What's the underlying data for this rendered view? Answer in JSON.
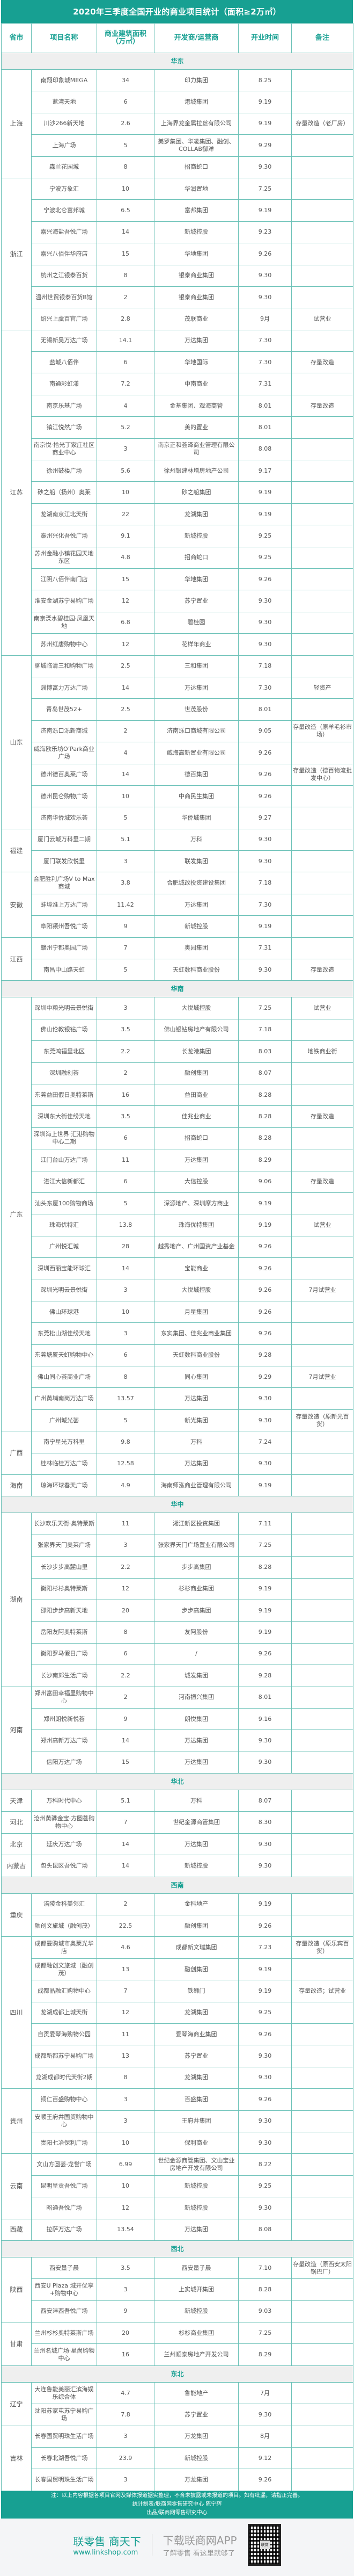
{
  "title": "2020年三季度全国开业的商业项目统计（面积≥2万㎡）",
  "headers": [
    "省市",
    "项目名称",
    "商业建筑面积（万㎡）",
    "开发商/运营商",
    "开业时间",
    "备注"
  ],
  "colors": {
    "accent": "#17a092",
    "region_bg": "#efefef",
    "border": "#6cc2b8"
  },
  "regions": [
    {
      "name": "华东",
      "provinces": [
        {
          "name": "上海",
          "rows": [
            [
              "南翔印象城MEGA",
              "34",
              "印力集团",
              "8.25",
              ""
            ],
            [
              "蓝湾天地",
              "6",
              "港城集团",
              "9.19",
              ""
            ],
            [
              "川沙266新天地",
              "2.6",
              "上海界龙金属拉丝有限公司",
              "9.19",
              "存量改造（老厂房）"
            ],
            [
              "上海广场",
              "5",
              "美罗集团、华凌集团、融创、COLLAB御洋",
              "9.29",
              ""
            ],
            [
              "森兰花园城",
              "8",
              "招商蛇口",
              "9.30",
              ""
            ]
          ]
        },
        {
          "name": "浙江",
          "rows": [
            [
              "宁波万象汇",
              "10",
              "华润置地",
              "7.25",
              ""
            ],
            [
              "宁波北仑富邦城",
              "6.5",
              "富邦集团",
              "9.19",
              ""
            ],
            [
              "嘉兴海盐吾悦广场",
              "14",
              "新城控股",
              "9.23",
              ""
            ],
            [
              "嘉兴八佰伴华府店",
              "15",
              "华地集团",
              "9.26",
              ""
            ],
            [
              "杭州之江银泰百货",
              "8",
              "银泰商业集团",
              "9.30",
              ""
            ],
            [
              "温州世贸银泰百货B馆",
              "2",
              "银泰商业集团",
              "9.30",
              ""
            ],
            [
              "绍兴上虞百官广场",
              "2.8",
              "茂联商业",
              "9月",
              "试营业"
            ]
          ]
        },
        {
          "name": "江苏",
          "rows": [
            [
              "无锡新吴万达广场",
              "14.1",
              "万达集团",
              "7.30",
              ""
            ],
            [
              "盐城八佰伴",
              "6",
              "华地国际",
              "7.30",
              "存量改造"
            ],
            [
              "南通彩虹漾",
              "7.2",
              "中南商业",
              "7.31",
              ""
            ],
            [
              "南京乐基广场",
              "4",
              "金基集团、观海商管",
              "8.01",
              "存量改造"
            ],
            [
              "镇江悦然广场",
              "5.2",
              "美的置业",
              "8.01",
              ""
            ],
            [
              "南京悦·拾光丁家庄社区商业中心",
              "3",
              "南京正和荟泽商业管理有限公司",
              "8.08",
              ""
            ],
            [
              "徐州鼓楼广场",
              "5.6",
              "徐州银建林增房地产公司",
              "9.17",
              ""
            ],
            [
              "砂之船（扬州）奥莱",
              "10",
              "砂之船集团",
              "9.19",
              ""
            ],
            [
              "龙湖南京江北天街",
              "22",
              "龙湖集团",
              "9.19",
              ""
            ],
            [
              "泰州兴化吾悦广场",
              "9.1",
              "新城控股",
              "9.25",
              ""
            ],
            [
              "苏州金融小镇花园天地东区",
              "4.8",
              "招商蛇口",
              "9.25",
              ""
            ],
            [
              "江阴八佰伴南门店",
              "15",
              "华地集团",
              "9.26",
              ""
            ],
            [
              "淮安金湖苏宁易购广场",
              "12",
              "苏宁置业",
              "9.30",
              ""
            ],
            [
              "南京溧水碧桂园·凤凰天地",
              "6.8",
              "碧桂园",
              "9.30",
              ""
            ],
            [
              "苏州红唐购物中心",
              "12",
              "花样年商业",
              "9.30",
              ""
            ]
          ]
        },
        {
          "name": "山东",
          "rows": [
            [
              "聊城临清三和购物广场",
              "2.5",
              "三和集团",
              "7.18",
              ""
            ],
            [
              "淄博富力万达广场",
              "14",
              "万达集团",
              "7.30",
              "轻资产"
            ],
            [
              "青岛世茂52+",
              "2.5",
              "世茂股份",
              "8.01",
              ""
            ],
            [
              "济南泺口泺新商城",
              "2",
              "济南泺口商城有限公司",
              "9.05",
              "存量改造（原羊毛衫市场）"
            ],
            [
              "威海欧乐坊O’Park商业广场",
              "4",
              "威海高新置业有限公司",
              "9.26",
              ""
            ],
            [
              "德州德百奥莱广场",
              "14",
              "德百集团",
              "9.26",
              "存量改造（德百物流批发中心）"
            ],
            [
              "德州昆仑购物广场",
              "10",
              "中商民生集团",
              "9.26",
              ""
            ],
            [
              "济南华侨城欢乐荟",
              "5",
              "华侨城集团",
              "9.27",
              ""
            ]
          ]
        },
        {
          "name": "福建",
          "rows": [
            [
              "厦门云城万科里二期",
              "5.1",
              "万科",
              "9.30",
              ""
            ],
            [
              "厦门联发欣悦里",
              "3",
              "联发集团",
              "9.30",
              ""
            ]
          ]
        },
        {
          "name": "安徽",
          "rows": [
            [
              "合肥胜利广场V to Max商城",
              "3.8",
              "合肥城改投资建设集团",
              "7.18",
              ""
            ],
            [
              "蚌埠淮上万达广场",
              "11.42",
              "万达集团",
              "7.30",
              ""
            ],
            [
              "阜阳颍州吾悦广场",
              "9",
              "新城控股",
              "9.19",
              ""
            ]
          ]
        },
        {
          "name": "江西",
          "rows": [
            [
              "赣州宁都奥园广场",
              "7",
              "奥园集团",
              "7.31",
              ""
            ],
            [
              "南昌中山路天虹",
              "5",
              "天虹数科商业股份",
              "9.30",
              "存量改造"
            ]
          ]
        }
      ]
    },
    {
      "name": "华南",
      "provinces": [
        {
          "name": "广东",
          "rows": [
            [
              "深圳中粮光明云景悦街",
              "3",
              "大悦城控股",
              "7.25",
              "试营业"
            ],
            [
              "佛山伦教银钻广场",
              "3.5",
              "佛山银钻房地产有限公司",
              "7.18",
              ""
            ],
            [
              "东莞鸿福里北区",
              "2.2",
              "长龙港集团",
              "8.03",
              "地铁商业街"
            ],
            [
              "深圳融创荟",
              "2",
              "融创集团",
              "8.07",
              ""
            ],
            [
              "东莞益田假日奥特莱斯",
              "16",
              "益田商业",
              "8.28",
              ""
            ],
            [
              "深圳东大街佳纷天地",
              "3.5",
              "佳兆业商业",
              "8.28",
              "存量改造"
            ],
            [
              "深圳海上世界·汇港购物中心二期",
              "6",
              "招商蛇口",
              "8.28",
              ""
            ],
            [
              "江门台山万达广场",
              "11",
              "万达集团",
              "8.29",
              ""
            ],
            [
              "湛江大信新都汇",
              "6",
              "大信控股",
              "9.06",
              "存量改造"
            ],
            [
              "汕头东厦100购物商场",
              "5",
              "深源地产、深圳摩方商业",
              "9.19",
              ""
            ],
            [
              "珠海优特汇",
              "13.8",
              "珠海优特集团",
              "9.19",
              "试营业"
            ],
            [
              "广州悦汇城",
              "28",
              "越秀地产、广州国资产业基金",
              "9.26",
              ""
            ],
            [
              "深圳西丽宝能环球汇",
              "14",
              "宝能商业",
              "9.26",
              ""
            ],
            [
              "深圳光明云景悦街",
              "3",
              "大悦城控股",
              "9.26",
              "7月试营业"
            ],
            [
              "佛山环球港",
              "10",
              "月星集团",
              "9.26",
              ""
            ],
            [
              "东莞松山湖佳纷天地",
              "3",
              "东实集团、佳兆业商业集团",
              "9.26",
              ""
            ],
            [
              "东莞塘厦天虹购物中心",
              "6",
              "天虹数科商业股份",
              "9.28",
              ""
            ],
            [
              "佛山同心荟商业广场",
              "8",
              "同心集团",
              "9.29",
              "7月试营业"
            ],
            [
              "广州黄埔南岗万达广场",
              "13.57",
              "万达集团",
              "9.30",
              ""
            ],
            [
              "广州城光荟",
              "5",
              "新光集团",
              "9.30",
              "存量改造（原新光百货）"
            ]
          ]
        },
        {
          "name": "广西",
          "rows": [
            [
              "南宁星光万科里",
              "9.8",
              "万科",
              "7.24",
              ""
            ],
            [
              "桂林临桂万达广场",
              "12.58",
              "万达集团",
              "9.30",
              ""
            ]
          ]
        },
        {
          "name": "海南",
          "rows": [
            [
              "琼海环球春天广场",
              "4.9",
              "海南师泓商业管理有限公司",
              "9.19",
              ""
            ]
          ]
        }
      ]
    },
    {
      "name": "华中",
      "provinces": [
        {
          "name": "湖南",
          "rows": [
            [
              "长沙欢乐天街·奥特莱斯",
              "11",
              "湘江新区投资集团",
              "7.11",
              ""
            ],
            [
              "张家界天门奥莱广场",
              "3",
              "张家界天门广场置业有限公司",
              "7.25",
              ""
            ],
            [
              "长沙步步高麓山里",
              "2.2",
              "步步高集团",
              "8.28",
              ""
            ],
            [
              "衡阳杉杉奥特莱斯",
              "12",
              "杉杉商业集团",
              "9.19",
              ""
            ],
            [
              "邵阳步步高新天地",
              "20",
              "步步高集团",
              "9.19",
              ""
            ],
            [
              "岳阳友阿奥特莱斯",
              "8",
              "友阿股份",
              "9.19",
              ""
            ],
            [
              "衡阳罗马假日广场",
              "6",
              "/",
              "9.26",
              ""
            ],
            [
              "长沙南郊生活广场",
              "2.2",
              "城发集团",
              "9.28",
              ""
            ]
          ]
        },
        {
          "name": "河南",
          "rows": [
            [
              "郑州富田幸福里购物中心",
              "2",
              "河南振兴集团",
              "8.01",
              ""
            ],
            [
              "郑州朗悦新悦荟",
              "9",
              "朗悦集团",
              "9.16",
              ""
            ],
            [
              "郑州高新万达广场",
              "14",
              "万达集团",
              "9.30",
              ""
            ],
            [
              "信阳万达广场",
              "15",
              "万达集团",
              "9.30",
              ""
            ]
          ]
        }
      ]
    },
    {
      "name": "华北",
      "provinces": [
        {
          "name": "天津",
          "rows": [
            [
              "万科时代中心",
              "5.1",
              "万科",
              "8.07",
              ""
            ]
          ]
        },
        {
          "name": "河北",
          "rows": [
            [
              "沧州黄骅金宝·方圆荟购物中心",
              "7",
              "世纪金源商管集团",
              "8.30",
              ""
            ]
          ]
        },
        {
          "name": "北京",
          "rows": [
            [
              "延庆万达广场",
              "14",
              "万达集团",
              "9.30",
              ""
            ]
          ]
        },
        {
          "name": "内蒙古",
          "rows": [
            [
              "包头昆区吾悦广场",
              "14",
              "新城控股",
              "9.30",
              ""
            ]
          ]
        }
      ]
    },
    {
      "name": "西南",
      "provinces": [
        {
          "name": "重庆",
          "rows": [
            [
              "涪陵金科美邻汇",
              "2",
              "金科地产",
              "9.19",
              ""
            ],
            [
              "融创文旅城（融创茂）",
              "22.5",
              "融创集团",
              "9.26",
              ""
            ]
          ]
        },
        {
          "name": "四川",
          "rows": [
            [
              "成都曼购城市奥莱光华店",
              "4.6",
              "成都新文瑞集团",
              "7.23",
              "存量改造（原乐宾百货）"
            ],
            [
              "成都融创文旅城（融创茂）",
              "13",
              "融创集团",
              "9.19",
              ""
            ],
            [
              "成都晶融汇购物中心",
              "7",
              "铁狮门",
              "9.19",
              "存量改造；试营业"
            ],
            [
              "龙湖成都上城天街",
              "12",
              "龙湖集团",
              "9.25",
              ""
            ],
            [
              "自贡爱琴海购物公园",
              "11",
              "爱琴海商业集团",
              "9.26",
              ""
            ],
            [
              "成都新都苏宁易购广场",
              "13",
              "苏宁置业",
              "9.30",
              ""
            ],
            [
              "龙湖成都时代天街2期",
              "8",
              "龙湖集团",
              "9.30",
              ""
            ]
          ]
        },
        {
          "name": "贵州",
          "rows": [
            [
              "铜仁百盛购物中心",
              "3",
              "百盛集团",
              "9.26",
              ""
            ],
            [
              "安顺王府井国贸购物中心",
              "3",
              "王府井集团",
              "9.30",
              ""
            ],
            [
              "贵阳七冶保利广场",
              "10",
              "保利商业",
              "9.30",
              ""
            ]
          ]
        },
        {
          "name": "云南",
          "rows": [
            [
              "文山方圆荟·龙誉广场",
              "6.99",
              "世纪金源商管集团、文山宝业房地产开发有限公司",
              "8.22",
              ""
            ],
            [
              "昆明呈贡吾悦广场",
              "10",
              "新城控股",
              "9.25",
              ""
            ],
            [
              "昭通吾悦广场",
              "12",
              "新城控股",
              "9.30",
              ""
            ]
          ]
        },
        {
          "name": "西藏",
          "rows": [
            [
              "拉萨万达广场",
              "13.54",
              "万达集团",
              "8.08",
              ""
            ]
          ]
        }
      ]
    },
    {
      "name": "西北",
      "provinces": [
        {
          "name": "陕西",
          "rows": [
            [
              "西安量子晨",
              "3.5",
              "西安量子晨",
              "7.10",
              "存量改造（原西安太阳锅巴厂）"
            ],
            [
              "西安U Plaza 城开优享+购物中心",
              "3",
              "上实城开集团",
              "8.28",
              ""
            ],
            [
              "西安沣西吾悦广场",
              "9",
              "新城控股",
              "9.03",
              ""
            ]
          ]
        },
        {
          "name": "甘肃",
          "rows": [
            [
              "兰州杉杉奥特莱斯广场",
              "20",
              "杉杉商业集团",
              "7.25",
              ""
            ],
            [
              "兰州名城广场·星尚购物中心",
              "16",
              "兰州顺泰房地产开发公司",
              "8.29",
              ""
            ]
          ]
        }
      ]
    },
    {
      "name": "东北",
      "provinces": [
        {
          "name": "辽宁",
          "rows": [
            [
              "大连鲁能美丽汇滨海娱乐综合体",
              "4.7",
              "鲁能地产",
              "7月",
              ""
            ],
            [
              "沈阳苏家屯苏宁易购广场",
              "7.8",
              "苏宁置业",
              "9.30",
              ""
            ]
          ]
        },
        {
          "name": "吉林",
          "rows": [
            [
              "长春国贸明珠生活广场",
              "3",
              "万龙集团",
              "8月",
              ""
            ],
            [
              "长春北湖吾悦广场",
              "23.9",
              "新城控股",
              "9.12",
              ""
            ],
            [
              "长春国贸明珠生活广场",
              "3",
              "万龙集团",
              "9.26",
              ""
            ]
          ]
        }
      ]
    }
  ],
  "footer": {
    "note": "注：以上内容根据各项目官网及媒体报道据实整理，不含未披露或未报道的项目。如有纰漏，请指正完善。",
    "author": "统计制表/联商网零售研究中心 陈宁辉",
    "producer": "出品/联商网零售研究中心"
  },
  "brand": {
    "slogan": "联零售 商天下",
    "url": "www.linkshop.com",
    "app_title": "下载联商网APP",
    "app_sub": "了解零售 看这里就够了",
    "qr_label": "联商",
    "qr_icon": "qr-code-icon"
  }
}
